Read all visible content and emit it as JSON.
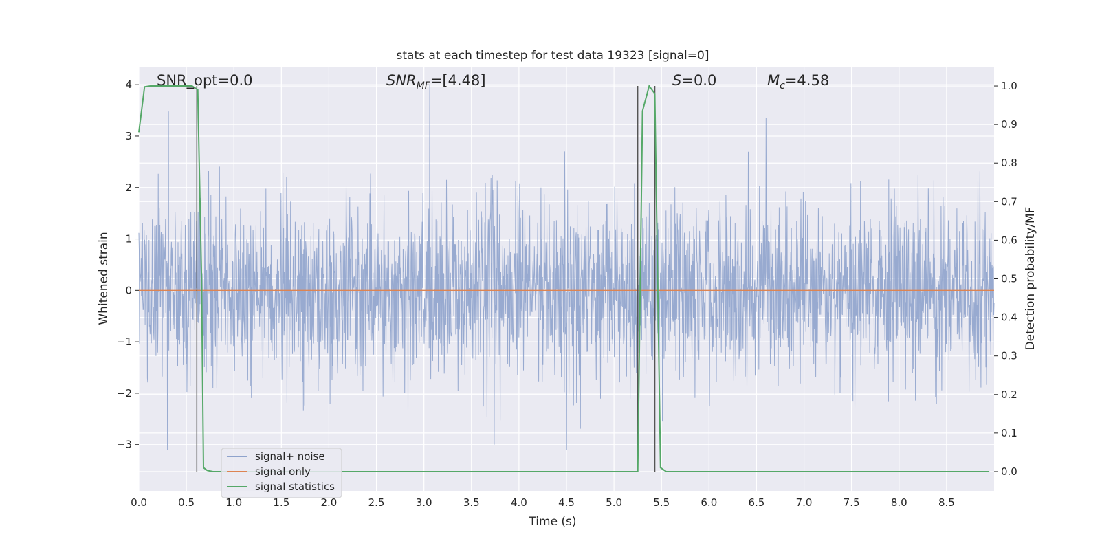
{
  "chart_data": {
    "type": "line",
    "title": "stats at each timestep for test data 19323 [signal=0]",
    "xlabel": "Time (s)",
    "ylabel_left": "Whitened strain",
    "ylabel_right": "Detection probability/MF",
    "xlim": [
      0,
      9.0
    ],
    "ylim_left": [
      -3.9,
      4.35
    ],
    "ylim_right": [
      -0.05,
      1.05
    ],
    "x_ticks": [
      "0.0",
      "0.5",
      "1.0",
      "1.5",
      "2.0",
      "2.5",
      "3.0",
      "3.5",
      "4.0",
      "4.5",
      "5.0",
      "5.5",
      "6.0",
      "6.5",
      "7.0",
      "7.5",
      "8.0",
      "8.5"
    ],
    "y_left_ticks": [
      "−3",
      "−2",
      "−1",
      "0",
      "1",
      "2",
      "3",
      "4"
    ],
    "y_right_ticks": [
      "0.0",
      "0.1",
      "0.2",
      "0.3",
      "0.4",
      "0.5",
      "0.6",
      "0.7",
      "0.8",
      "0.9",
      "1.0"
    ],
    "grid": true,
    "legend_position": "lower-left",
    "annotations": {
      "snr_opt": "SNR_opt=0.0",
      "snr_mf_main": "SNR",
      "snr_mf_sub": "MF",
      "snr_mf_rest": "=[4.48]",
      "s_main": "S",
      "s_rest": "=0.0",
      "mc_main": "M",
      "mc_sub": "c",
      "mc_rest": "=4.58"
    },
    "series": [
      {
        "name": "signal+ noise",
        "axis": "left",
        "color": "#8fa3cc",
        "description_values": "whitened noise spanning about -3.1 to 4.0",
        "peaks": [
          [
            0.31,
            3.48
          ],
          [
            3.06,
            4.0
          ],
          [
            6.6,
            3.35
          ],
          [
            0.3,
            -3.1
          ],
          [
            4.5,
            -3.1
          ],
          [
            3.74,
            -3.0
          ]
        ],
        "envelope": [
          -1.3,
          1.5
        ]
      },
      {
        "name": "signal only",
        "axis": "left",
        "color": "#dd8452",
        "x": [
          0.0,
          9.0
        ],
        "y": [
          0.0,
          0.0
        ]
      },
      {
        "name": "signal statistics",
        "axis": "right",
        "color": "#55a868",
        "x": [
          0.0,
          0.06,
          0.12,
          0.2,
          0.3,
          0.4,
          0.5,
          0.56,
          0.62,
          0.66,
          0.68,
          0.72,
          0.78,
          0.9,
          2.0,
          3.0,
          4.0,
          5.0,
          5.25,
          5.3,
          5.37,
          5.43,
          5.49,
          5.55,
          5.6,
          6.0,
          7.0,
          8.0,
          8.95
        ],
        "y": [
          0.88,
          0.998,
          1.0,
          1.0,
          1.0,
          1.0,
          1.0,
          1.0,
          0.99,
          0.5,
          0.01,
          0.003,
          0.0,
          0.0,
          0.0,
          0.0,
          0.0,
          0.0,
          0.0,
          0.935,
          1.0,
          0.98,
          0.01,
          0.0,
          0.0,
          0.0,
          0.0,
          0.0,
          0.0
        ]
      }
    ],
    "vertical_lines": [
      0.61,
      5.25,
      5.43
    ],
    "vertical_line_color": "#555555"
  }
}
